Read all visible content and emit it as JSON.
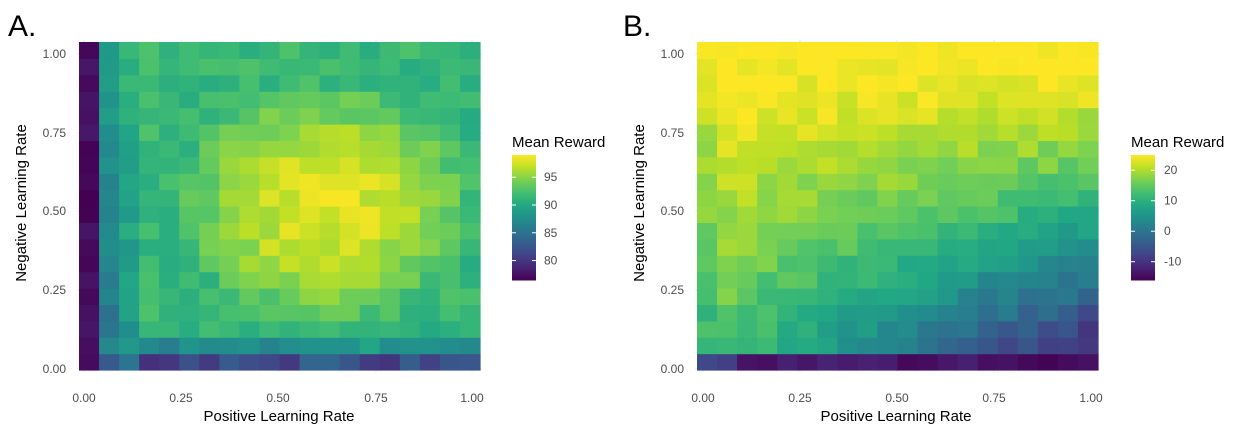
{
  "colormap": "viridis",
  "colors": {
    "viridis_low": "#440154",
    "viridis_mid": "#21908C",
    "viridis_high": "#FDE725",
    "grid": "#ebebeb",
    "background": "#ffffff"
  },
  "chart_data": [
    {
      "type": "heatmap",
      "panel_label": "A.",
      "xlabel": "Positive Learning Rate",
      "ylabel": "Negative Learning Rate",
      "x_ticks": [
        "0.00",
        "0.25",
        "0.50",
        "0.75",
        "1.00"
      ],
      "y_ticks": [
        "0.00",
        "0.25",
        "0.50",
        "0.75",
        "1.00"
      ],
      "xlim": [
        0,
        1
      ],
      "ylim": [
        0,
        1
      ],
      "grid_resolution": 20,
      "legend": {
        "title": "Mean Reward",
        "ticks": [
          "80",
          "85",
          "90",
          "95"
        ],
        "tick_values": [
          80,
          85,
          90,
          95
        ],
        "min": 76.5,
        "max": 99,
        "position": "right"
      },
      "description": "Reward is lowest along x=0 (~77) and y=0 (~80-84); highest (~96-98) in the interior around x 0.4-0.9, y 0.3-0.7; interior ~92-95."
    },
    {
      "type": "heatmap",
      "panel_label": "B.",
      "xlabel": "Positive Learning Rate",
      "ylabel": "Negative Learning Rate",
      "x_ticks": [
        "0.00",
        "0.25",
        "0.50",
        "0.75",
        "1.00"
      ],
      "y_ticks": [
        "0.00",
        "0.25",
        "0.50",
        "0.75",
        "1.00"
      ],
      "xlim": [
        0,
        1
      ],
      "ylim": [
        0,
        1
      ],
      "grid_resolution": 20,
      "legend": {
        "title": "Mean Reward",
        "ticks": [
          "20",
          "10",
          "0",
          "-10"
        ],
        "tick_values": [
          20,
          10,
          0,
          -10
        ],
        "min": -16,
        "max": 25,
        "position": "right"
      },
      "description": "Reward highest (~20-25) near x=0 and for high negative learning rates; decreases toward low negative / high positive learning rates, minimum (~-15) near y=0, x 0.5-1."
    }
  ]
}
